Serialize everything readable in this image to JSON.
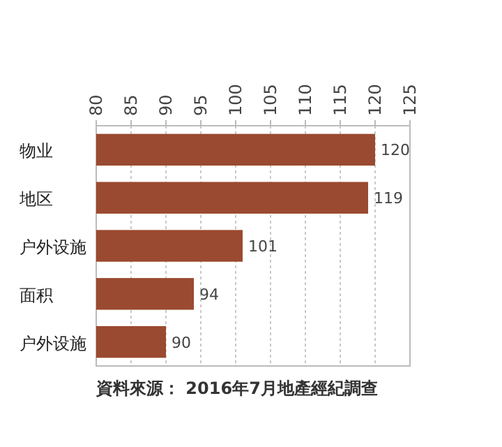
{
  "chart_data": {
    "type": "bar",
    "orientation": "horizontal",
    "categories": [
      "物业",
      "地区",
      "户外设施",
      "面积",
      "户外设施"
    ],
    "values": [
      120,
      119,
      101,
      94,
      90
    ],
    "color": "#9a4a30",
    "xlim": [
      80,
      125
    ],
    "xticks": [
      80,
      85,
      90,
      95,
      100,
      105,
      110,
      115,
      120,
      125
    ],
    "grid": "x",
    "data_labels": true,
    "annotations": [
      "資料來源： 2016年7月地產經紀調查"
    ]
  }
}
